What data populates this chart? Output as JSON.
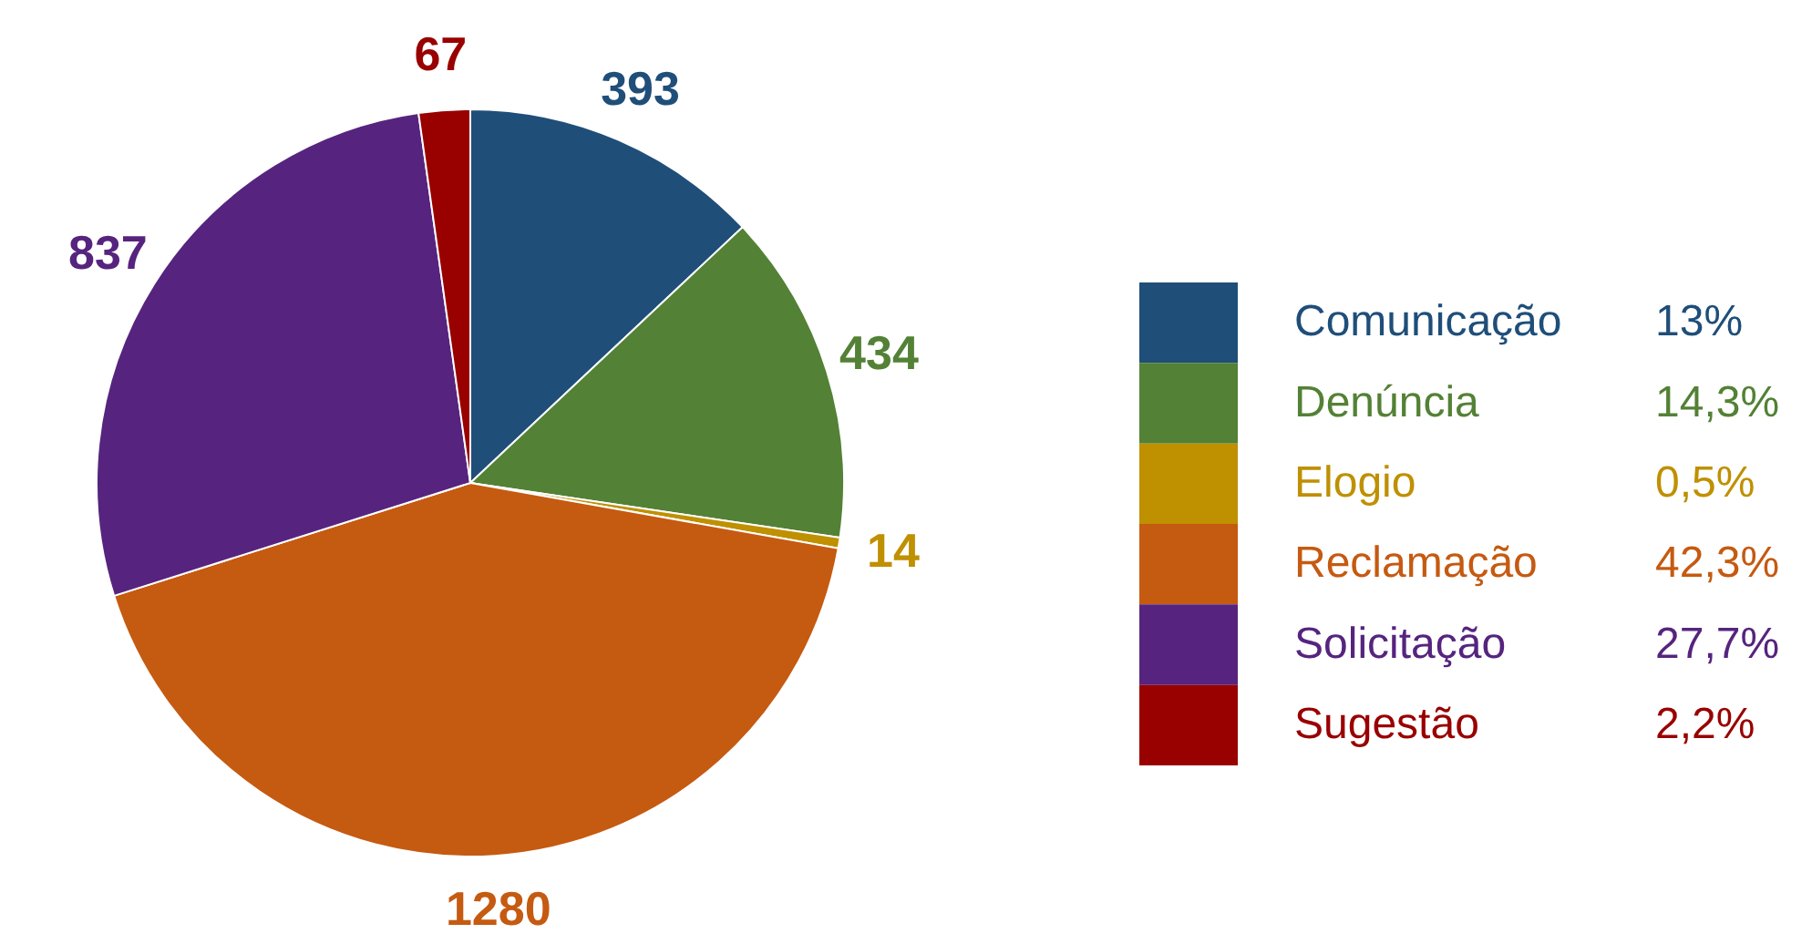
{
  "chart_data": {
    "type": "pie",
    "categories": [
      "Comunicação",
      "Denúncia",
      "Elogio",
      "Reclamação",
      "Solicitação",
      "Sugestão"
    ],
    "values": [
      393,
      434,
      14,
      1280,
      837,
      67
    ],
    "colors": [
      "#1f4e79",
      "#538135",
      "#bf9000",
      "#c55a11",
      "#56247e",
      "#990000"
    ],
    "annotations": [
      "13%",
      "14,3%",
      "0,5%",
      "42,3%",
      "27,7%",
      "2,2%"
    ],
    "data_labels": true,
    "legend": "right"
  }
}
